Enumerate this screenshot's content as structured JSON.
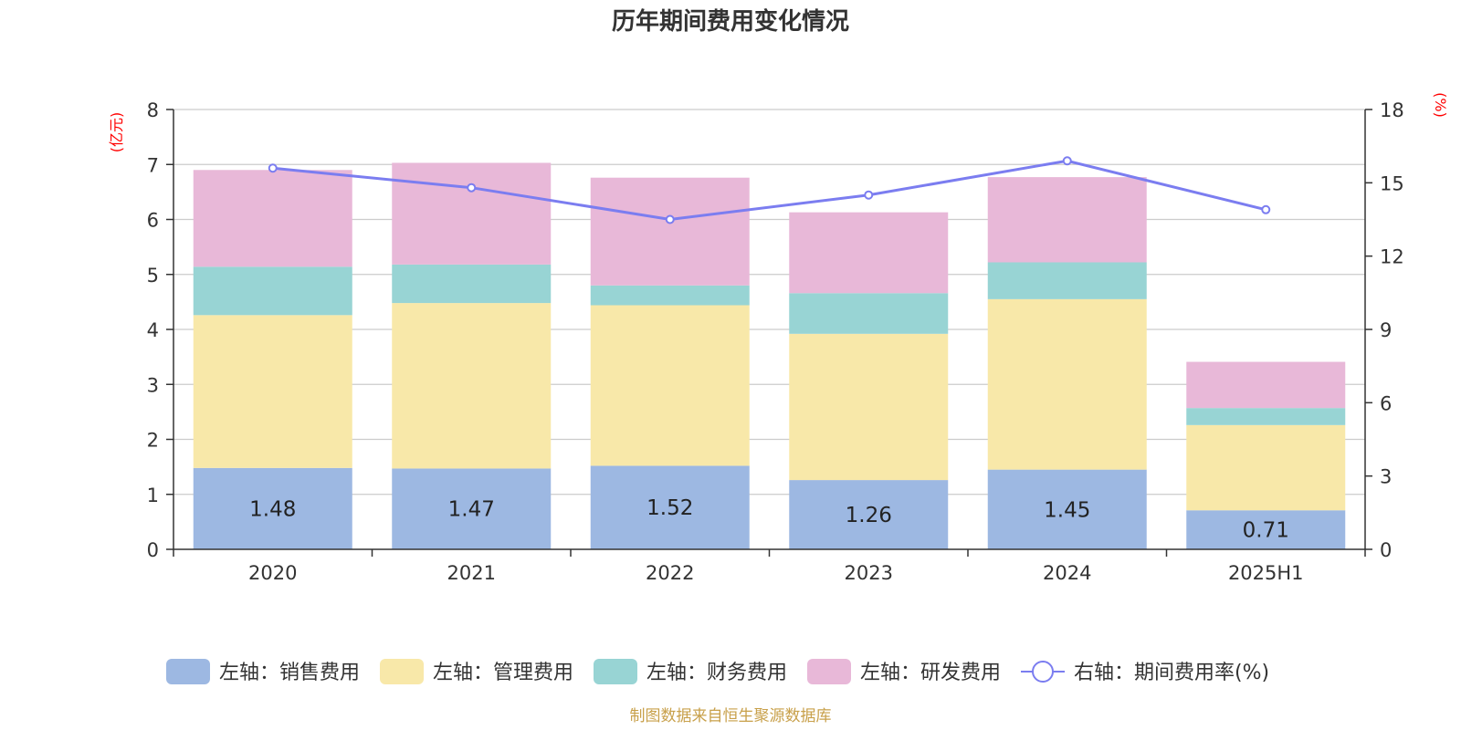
{
  "chart_data": {
    "type": "bar",
    "title": "历年期间费用变化情况",
    "categories": [
      "2020",
      "2021",
      "2022",
      "2023",
      "2024",
      "2025H1"
    ],
    "left_axis": {
      "unit": "(亿元)",
      "ylim": [
        0,
        8
      ],
      "ticks": [
        "0",
        "1",
        "2",
        "3",
        "4",
        "5",
        "6",
        "7",
        "8"
      ]
    },
    "right_axis": {
      "unit": "(%)",
      "ylim": [
        0,
        18
      ],
      "ticks": [
        "0",
        "3",
        "6",
        "9",
        "12",
        "15",
        "18"
      ]
    },
    "series": [
      {
        "name": "左轴：销售费用",
        "type": "bar",
        "axis": "left",
        "color": "#9db8e2",
        "values": [
          1.48,
          1.47,
          1.52,
          1.26,
          1.45,
          0.71
        ],
        "labels": [
          "1.48",
          "1.47",
          "1.52",
          "1.26",
          "1.45",
          "0.71"
        ]
      },
      {
        "name": "左轴：管理费用",
        "type": "bar",
        "axis": "left",
        "color": "#f8e8a9",
        "values": [
          2.78,
          3.01,
          2.92,
          2.66,
          3.1,
          1.55
        ]
      },
      {
        "name": "左轴：财务费用",
        "type": "bar",
        "axis": "left",
        "color": "#98d4d4",
        "values": [
          0.88,
          0.7,
          0.36,
          0.74,
          0.67,
          0.31
        ]
      },
      {
        "name": "左轴：研发费用",
        "type": "bar",
        "axis": "left",
        "color": "#e8b8d8",
        "values": [
          1.76,
          1.85,
          1.96,
          1.47,
          1.55,
          0.84
        ]
      },
      {
        "name": "右轴：期间费用率(%)",
        "type": "line",
        "axis": "right",
        "color": "#7b7df0",
        "values": [
          15.6,
          14.8,
          13.5,
          14.5,
          15.9,
          13.9
        ]
      }
    ],
    "grid": true,
    "legend_position": "bottom"
  },
  "source": "制图数据来自恒生聚源数据库"
}
